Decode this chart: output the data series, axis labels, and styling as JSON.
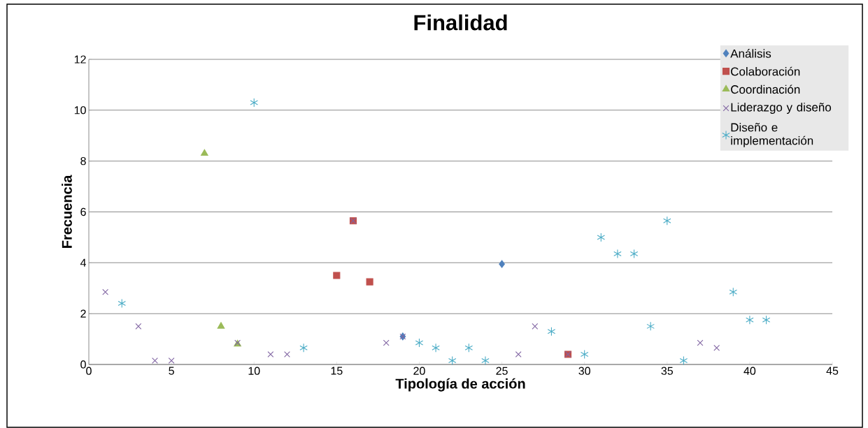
{
  "chart_data": {
    "type": "scatter",
    "title": "Finalidad",
    "xlabel": "Tipología de acción",
    "ylabel": "Frecuencia",
    "xlim": [
      0,
      45
    ],
    "xticks": [
      0,
      5,
      10,
      15,
      20,
      25,
      30,
      35,
      40,
      45
    ],
    "ylim": [
      0,
      12
    ],
    "yticks": [
      0,
      2,
      4,
      6,
      8,
      10,
      12
    ],
    "grid": "y",
    "legend": "top right",
    "series": [
      {
        "name": "Análisis",
        "color": "#4f81bd",
        "marker": "diamond",
        "x": [
          19,
          25
        ],
        "values": [
          1.1,
          3.95
        ]
      },
      {
        "name": "Colaboración",
        "color": "#c0504d",
        "marker": "square",
        "x": [
          15,
          16,
          17,
          29
        ],
        "values": [
          3.5,
          5.65,
          3.25,
          0.4
        ]
      },
      {
        "name": "Coordinación",
        "color": "#9bbb59",
        "marker": "triangle",
        "x": [
          7,
          8,
          9
        ],
        "values": [
          8.3,
          1.5,
          0.8
        ]
      },
      {
        "name": "Liderazgo y diseño",
        "color": "#8064a2",
        "marker": "cross",
        "x": [
          1,
          3,
          4,
          5,
          9,
          11,
          12,
          16,
          18,
          19,
          26,
          27,
          29,
          37,
          38
        ],
        "values": [
          2.85,
          1.5,
          0.15,
          0.15,
          0.85,
          0.4,
          0.4,
          5.65,
          0.85,
          1.1,
          0.4,
          1.5,
          0.4,
          0.85,
          0.65
        ]
      },
      {
        "name": "Diseño e implementación",
        "color": "#4bacc6",
        "x": [
          2,
          10,
          13,
          20,
          21,
          22,
          23,
          24,
          28,
          30,
          31,
          32,
          33,
          34,
          35,
          36,
          39,
          40,
          41
        ],
        "values": [
          2.4,
          10.3,
          0.65,
          0.85,
          0.65,
          0.15,
          0.65,
          0.15,
          1.3,
          0.4,
          5.0,
          4.35,
          4.35,
          1.5,
          5.65,
          0.15,
          2.85,
          1.75,
          1.75
        ]
      }
    ]
  }
}
